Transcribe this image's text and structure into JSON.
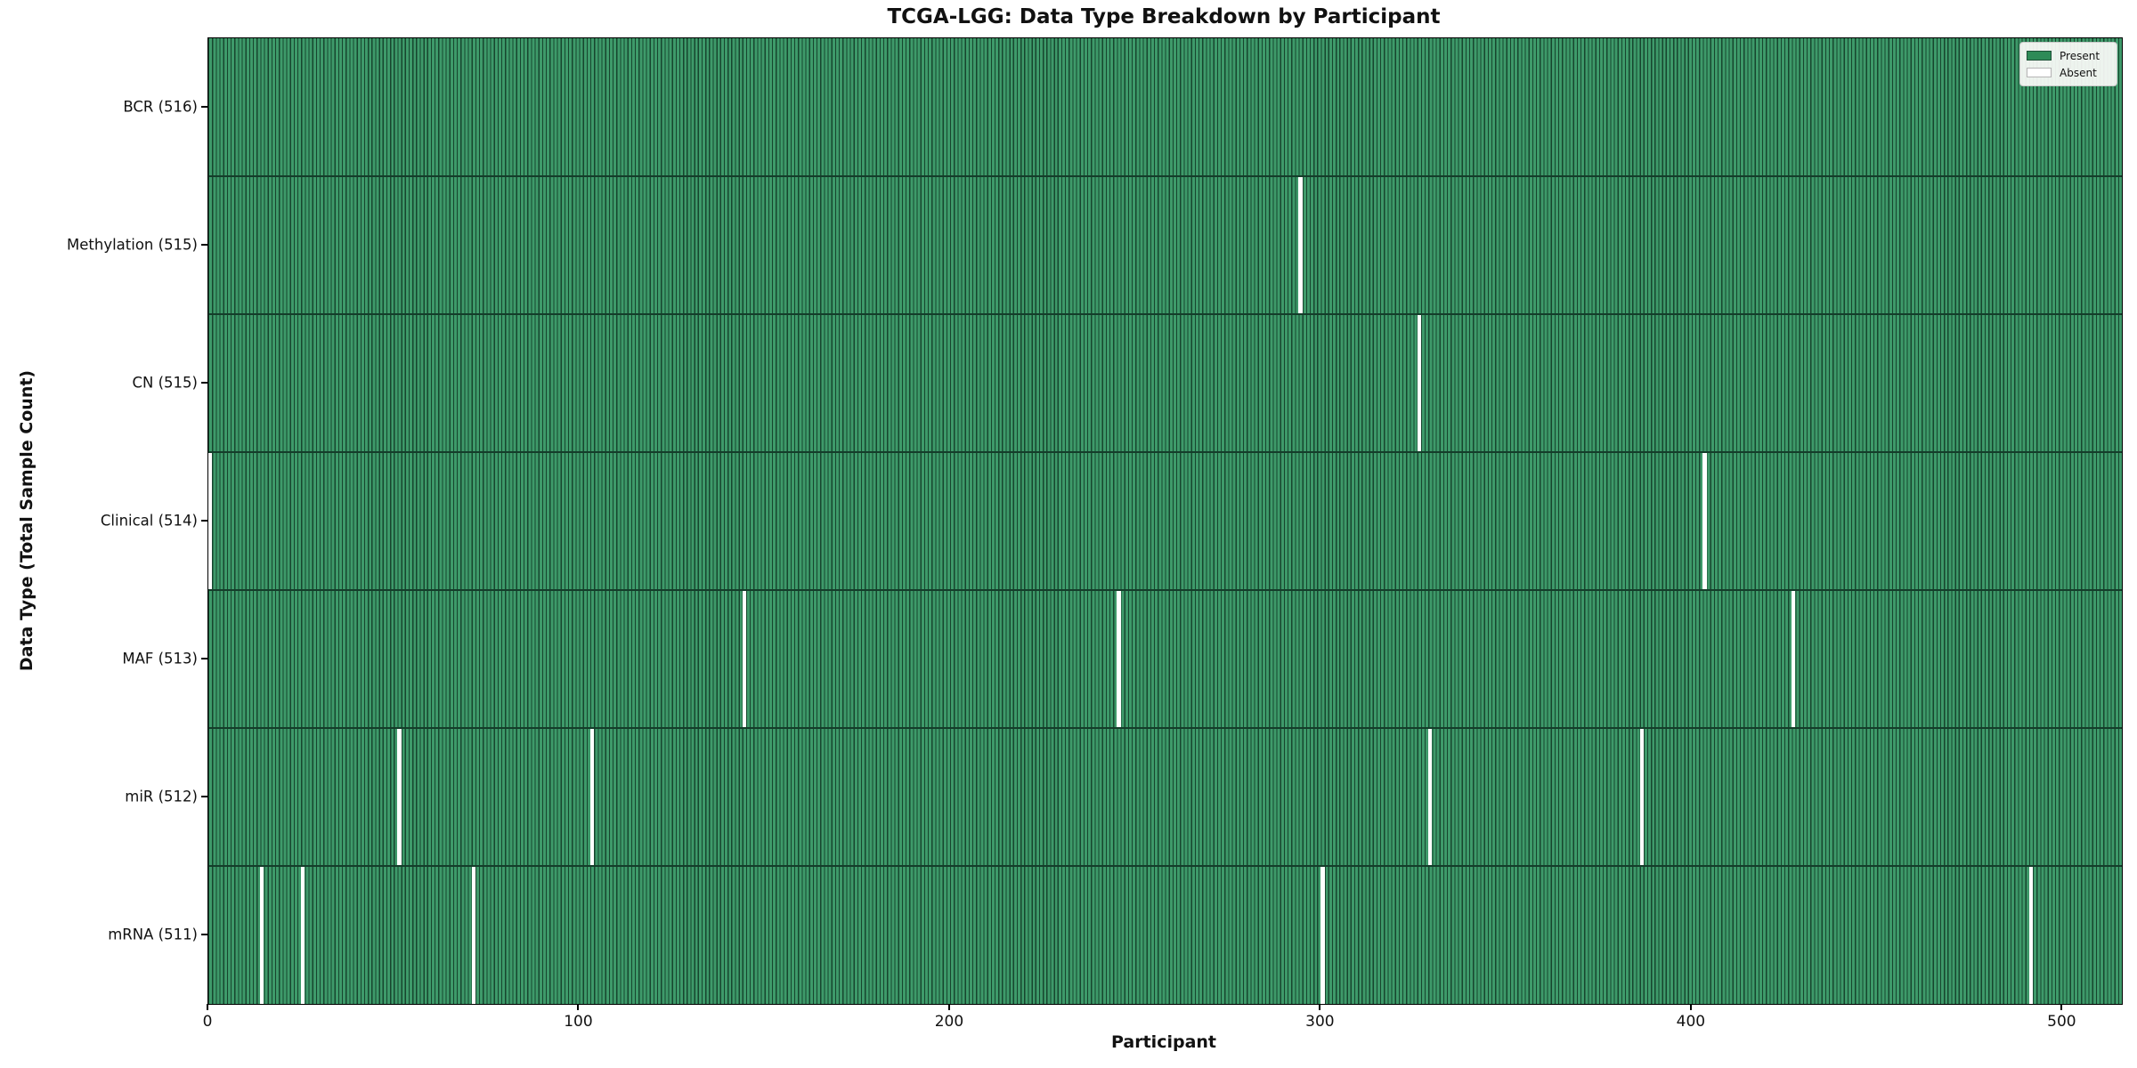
{
  "title": "TCGA-LGG: Data Type Breakdown by Participant",
  "xlabel": "Participant",
  "ylabel": "Data Type (Total Sample Count)",
  "colors": {
    "present_fill": "#3E9A6A",
    "present_edge": "#17452E",
    "legend_present": "#2E8B57",
    "absent": "#FFFFFF",
    "row_separator": "#143D2A"
  },
  "chart_data": {
    "type": "heatmap",
    "title": "TCGA-LGG: Data Type Breakdown by Participant",
    "xlabel": "Participant",
    "ylabel": "Data Type (Total Sample Count)",
    "n_participants": 516,
    "x_axis": {
      "ticks": [
        0,
        100,
        200,
        300,
        400,
        500
      ],
      "range": [
        0,
        516
      ]
    },
    "legend_position": "upper right",
    "grid": false,
    "rows": [
      {
        "label": "BCR (516)",
        "data_type": "BCR",
        "total": 516,
        "absent_participants": []
      },
      {
        "label": "Methylation (515)",
        "data_type": "Methylation",
        "total": 515,
        "absent_participants": [
          294
        ]
      },
      {
        "label": "CN (515)",
        "data_type": "CN",
        "total": 515,
        "absent_participants": [
          326
        ]
      },
      {
        "label": "Clinical (514)",
        "data_type": "Clinical",
        "total": 514,
        "absent_participants": [
          0,
          403
        ]
      },
      {
        "label": "MAF (513)",
        "data_type": "MAF",
        "total": 513,
        "absent_participants": [
          144,
          245,
          427
        ]
      },
      {
        "label": "miR (512)",
        "data_type": "miR",
        "total": 512,
        "absent_participants": [
          51,
          103,
          329,
          386
        ]
      },
      {
        "label": "mRNA (511)",
        "data_type": "mRNA",
        "total": 511,
        "absent_participants": [
          14,
          25,
          71,
          300,
          491
        ]
      }
    ],
    "legend": [
      {
        "label": "Present",
        "color": "#2E8B57"
      },
      {
        "label": "Absent",
        "color": "#FFFFFF"
      }
    ]
  }
}
